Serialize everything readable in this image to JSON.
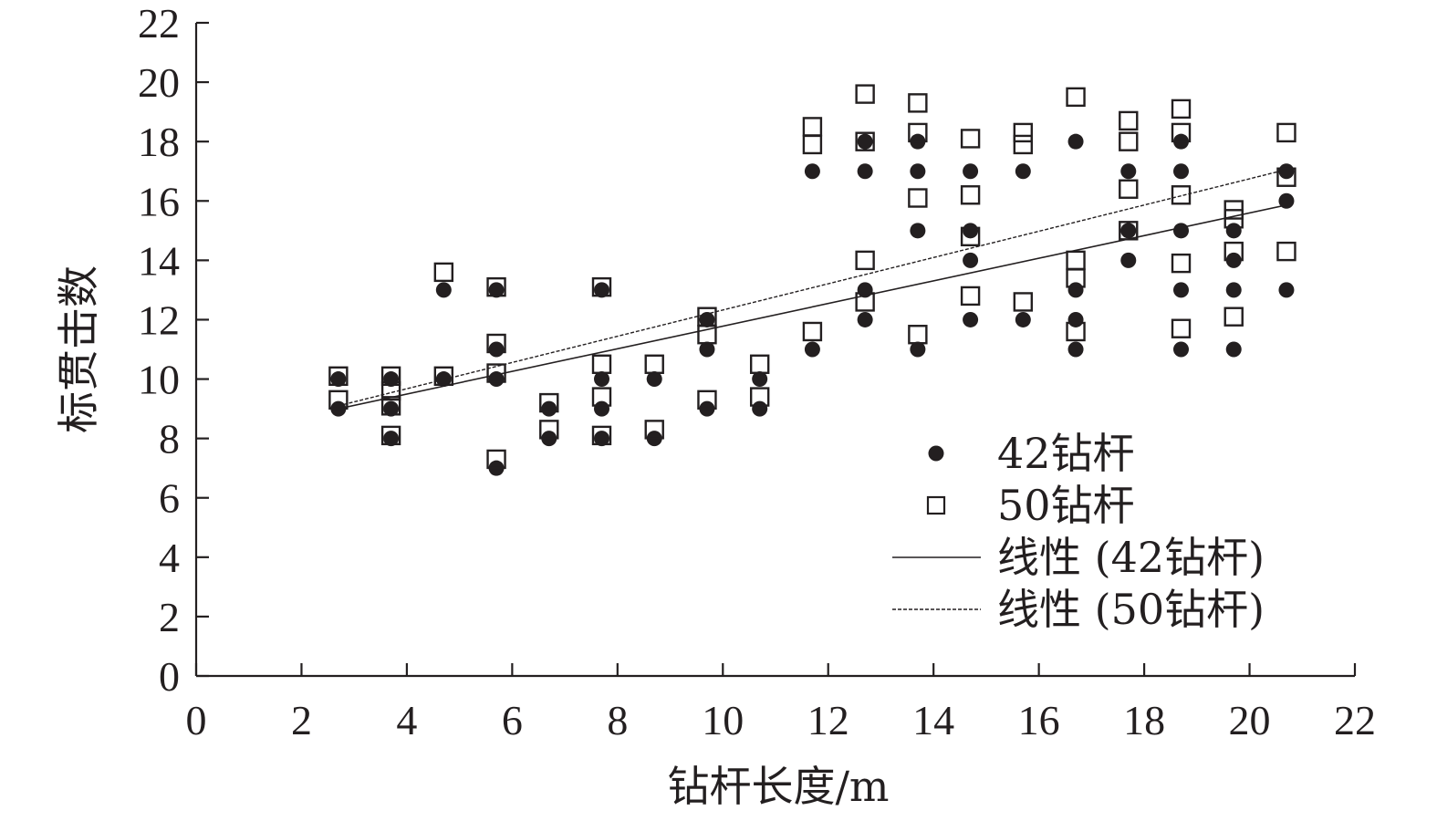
{
  "chart_data": {
    "type": "scatter",
    "title": "",
    "xlabel": "钻杆长度/m",
    "ylabel": "标贯击数",
    "xlim": [
      0,
      22
    ],
    "ylim": [
      0,
      22
    ],
    "xticks": [
      0,
      2,
      4,
      6,
      8,
      10,
      12,
      14,
      16,
      18,
      20,
      22
    ],
    "yticks": [
      0,
      2,
      4,
      6,
      8,
      10,
      12,
      14,
      16,
      18,
      20,
      22
    ],
    "grid": false,
    "legend_position": "bottom-right",
    "series": [
      {
        "name": "42钻杆",
        "marker": "filled-circle",
        "color": "#231f20",
        "points": [
          [
            2.7,
            9
          ],
          [
            2.7,
            10
          ],
          [
            3.7,
            8
          ],
          [
            3.7,
            9
          ],
          [
            3.7,
            10
          ],
          [
            4.7,
            10
          ],
          [
            4.7,
            13
          ],
          [
            5.7,
            7
          ],
          [
            5.7,
            10
          ],
          [
            5.7,
            11
          ],
          [
            5.7,
            13
          ],
          [
            6.7,
            8
          ],
          [
            6.7,
            9
          ],
          [
            7.7,
            8
          ],
          [
            7.7,
            9
          ],
          [
            7.7,
            10
          ],
          [
            7.7,
            13
          ],
          [
            8.7,
            8
          ],
          [
            8.7,
            10
          ],
          [
            9.7,
            9
          ],
          [
            9.7,
            11
          ],
          [
            9.7,
            12
          ],
          [
            10.7,
            9
          ],
          [
            10.7,
            10
          ],
          [
            11.7,
            11
          ],
          [
            11.7,
            17
          ],
          [
            12.7,
            12
          ],
          [
            12.7,
            13
          ],
          [
            12.7,
            17
          ],
          [
            12.7,
            18
          ],
          [
            13.7,
            11
          ],
          [
            13.7,
            15
          ],
          [
            13.7,
            17
          ],
          [
            13.7,
            18
          ],
          [
            14.7,
            12
          ],
          [
            14.7,
            14
          ],
          [
            14.7,
            15
          ],
          [
            14.7,
            17
          ],
          [
            15.7,
            12
          ],
          [
            15.7,
            17
          ],
          [
            16.7,
            11
          ],
          [
            16.7,
            12
          ],
          [
            16.7,
            13
          ],
          [
            16.7,
            18
          ],
          [
            17.7,
            14
          ],
          [
            17.7,
            15
          ],
          [
            17.7,
            17
          ],
          [
            18.7,
            11
          ],
          [
            18.7,
            13
          ],
          [
            18.7,
            15
          ],
          [
            18.7,
            17
          ],
          [
            18.7,
            18
          ],
          [
            19.7,
            11
          ],
          [
            19.7,
            13
          ],
          [
            19.7,
            14
          ],
          [
            19.7,
            15
          ],
          [
            20.7,
            13
          ],
          [
            20.7,
            16
          ],
          [
            20.7,
            17
          ]
        ]
      },
      {
        "name": "50钻杆",
        "marker": "open-square",
        "color": "#231f20",
        "points": [
          [
            2.7,
            9.3
          ],
          [
            2.7,
            10.1
          ],
          [
            3.7,
            8.1
          ],
          [
            3.7,
            9.1
          ],
          [
            3.7,
            9.6
          ],
          [
            3.7,
            10.1
          ],
          [
            4.7,
            10.1
          ],
          [
            4.7,
            13.6
          ],
          [
            5.7,
            7.3
          ],
          [
            5.7,
            10.2
          ],
          [
            5.7,
            11.2
          ],
          [
            5.7,
            13.1
          ],
          [
            6.7,
            8.3
          ],
          [
            6.7,
            9.2
          ],
          [
            7.7,
            8.1
          ],
          [
            7.7,
            9.4
          ],
          [
            7.7,
            10.5
          ],
          [
            7.7,
            13.1
          ],
          [
            8.7,
            8.3
          ],
          [
            8.7,
            10.5
          ],
          [
            9.7,
            9.3
          ],
          [
            9.7,
            11.5
          ],
          [
            9.7,
            12.1
          ],
          [
            10.7,
            9.4
          ],
          [
            10.7,
            10.5
          ],
          [
            11.7,
            11.6
          ],
          [
            11.7,
            17.9
          ],
          [
            11.7,
            18.5
          ],
          [
            12.7,
            12.6
          ],
          [
            12.7,
            14
          ],
          [
            12.7,
            18
          ],
          [
            12.7,
            19.6
          ],
          [
            13.7,
            11.5
          ],
          [
            13.7,
            16.1
          ],
          [
            13.7,
            18.3
          ],
          [
            13.7,
            19.3
          ],
          [
            14.7,
            12.8
          ],
          [
            14.7,
            14.8
          ],
          [
            14.7,
            16.2
          ],
          [
            14.7,
            18.1
          ],
          [
            15.7,
            12.6
          ],
          [
            15.7,
            17.9
          ],
          [
            15.7,
            18.3
          ],
          [
            16.7,
            11.6
          ],
          [
            16.7,
            13.4
          ],
          [
            16.7,
            14
          ],
          [
            16.7,
            19.5
          ],
          [
            17.7,
            15
          ],
          [
            17.7,
            16.4
          ],
          [
            17.7,
            18
          ],
          [
            17.7,
            18.7
          ],
          [
            18.7,
            11.7
          ],
          [
            18.7,
            13.9
          ],
          [
            18.7,
            16.2
          ],
          [
            18.7,
            18.3
          ],
          [
            18.7,
            19.1
          ],
          [
            19.7,
            12.1
          ],
          [
            19.7,
            14.3
          ],
          [
            19.7,
            15.4
          ],
          [
            19.7,
            15.7
          ],
          [
            20.7,
            14.3
          ],
          [
            20.7,
            16.8
          ],
          [
            20.7,
            18.3
          ]
        ]
      }
    ],
    "trendlines": [
      {
        "name": "线性 (42钻杆)",
        "style": "solid",
        "x": [
          2.7,
          20.8
        ],
        "y": [
          9.0,
          15.9
        ]
      },
      {
        "name": "线性 (50钻杆)",
        "style": "dashed",
        "x": [
          2.7,
          20.8
        ],
        "y": [
          9.1,
          17.1
        ]
      }
    ],
    "legend": [
      {
        "label": "42钻杆",
        "symbol": "filled-circle"
      },
      {
        "label": "50钻杆",
        "symbol": "open-square"
      },
      {
        "label": "线性 (42钻杆)",
        "symbol": "solid-line"
      },
      {
        "label": "线性 (50钻杆)",
        "symbol": "dashed-line"
      }
    ]
  }
}
